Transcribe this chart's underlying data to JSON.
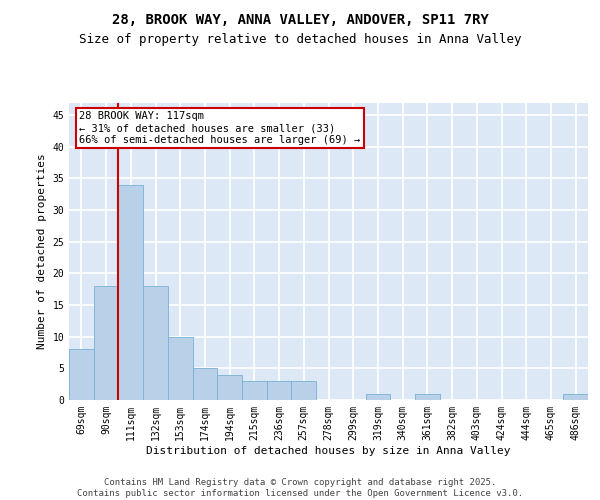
{
  "title1": "28, BROOK WAY, ANNA VALLEY, ANDOVER, SP11 7RY",
  "title2": "Size of property relative to detached houses in Anna Valley",
  "xlabel": "Distribution of detached houses by size in Anna Valley",
  "ylabel": "Number of detached properties",
  "bar_labels": [
    "69sqm",
    "90sqm",
    "111sqm",
    "132sqm",
    "153sqm",
    "174sqm",
    "194sqm",
    "215sqm",
    "236sqm",
    "257sqm",
    "278sqm",
    "299sqm",
    "319sqm",
    "340sqm",
    "361sqm",
    "382sqm",
    "403sqm",
    "424sqm",
    "444sqm",
    "465sqm",
    "486sqm"
  ],
  "bar_values": [
    8,
    18,
    34,
    18,
    10,
    5,
    4,
    3,
    3,
    3,
    0,
    0,
    1,
    0,
    1,
    0,
    0,
    0,
    0,
    0,
    1
  ],
  "bar_color": "#b8d0e8",
  "bar_edge_color": "#7aafd4",
  "background_color": "#dce8f5",
  "grid_color": "#ffffff",
  "vline_color": "#cc0000",
  "annotation_text": "28 BROOK WAY: 117sqm\n← 31% of detached houses are smaller (33)\n66% of semi-detached houses are larger (69) →",
  "annotation_box_color": "#ffffff",
  "annotation_box_edge": "#cc0000",
  "ylim": [
    0,
    47
  ],
  "yticks": [
    0,
    5,
    10,
    15,
    20,
    25,
    30,
    35,
    40,
    45
  ],
  "footer": "Contains HM Land Registry data © Crown copyright and database right 2025.\nContains public sector information licensed under the Open Government Licence v3.0.",
  "title_fontsize": 10,
  "subtitle_fontsize": 9,
  "axis_label_fontsize": 8,
  "tick_fontsize": 7,
  "annotation_fontsize": 7.5,
  "footer_fontsize": 6.5
}
